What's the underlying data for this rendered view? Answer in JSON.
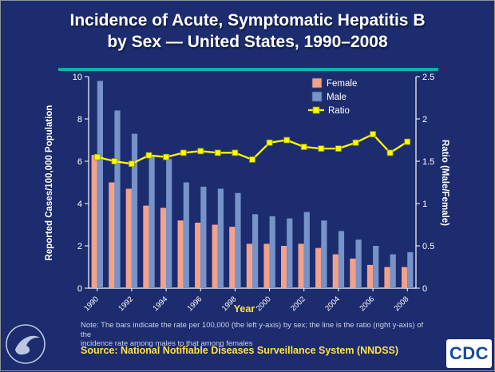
{
  "title": {
    "line1": "Incidence of Acute, Symptomatic Hepatitis B",
    "line2": "by Sex — United States, 1990–2008"
  },
  "colors": {
    "background": "#1d2c6f",
    "divider_teal": "#0ab5a3",
    "female_bar": "#f2a28a",
    "male_bar": "#7693ca",
    "ratio_line": "#fdfd00",
    "axis_text": "#ffffff",
    "accent_yellow": "#fde14a",
    "note_text": "#c9d1e8",
    "cdc_blue": "#164a9c"
  },
  "chart_data": {
    "type": "bar",
    "subtype": "grouped bars with overlay line on secondary axis",
    "categories": [
      "1990",
      "1991",
      "1992",
      "1993",
      "1994",
      "1995",
      "1996",
      "1997",
      "1998",
      "1999",
      "2000",
      "2001",
      "2002",
      "2003",
      "2004",
      "2005",
      "2006",
      "2007",
      "2008"
    ],
    "series": [
      {
        "name": "Female",
        "type": "bar",
        "axis": "left",
        "color": "#f2a28a",
        "values": [
          6.3,
          5.0,
          4.7,
          3.9,
          3.8,
          3.2,
          3.1,
          3.0,
          2.9,
          2.1,
          2.1,
          2.0,
          2.1,
          1.9,
          1.6,
          1.4,
          1.1,
          1.0,
          1.0
        ]
      },
      {
        "name": "Male",
        "type": "bar",
        "axis": "left",
        "color": "#7693ca",
        "values": [
          9.8,
          8.4,
          7.3,
          6.3,
          6.1,
          5.0,
          4.8,
          4.7,
          4.5,
          3.5,
          3.4,
          3.3,
          3.6,
          3.2,
          2.7,
          2.3,
          2.0,
          1.6,
          1.7
        ]
      },
      {
        "name": "Ratio",
        "type": "line",
        "axis": "right",
        "color": "#fdfd00",
        "values": [
          1.55,
          1.5,
          1.47,
          1.57,
          1.55,
          1.6,
          1.62,
          1.6,
          1.6,
          1.52,
          1.72,
          1.75,
          1.67,
          1.65,
          1.65,
          1.72,
          1.82,
          1.6,
          1.73
        ]
      }
    ],
    "left_axis": {
      "title": "Reported Cases/100,000 Population",
      "min": 0,
      "max": 10,
      "ticks": [
        0,
        2,
        4,
        6,
        8,
        10
      ]
    },
    "right_axis": {
      "title": "Ratio (Male/Female)",
      "min": 0,
      "max": 2.5,
      "ticks": [
        0,
        0.5,
        1,
        1.5,
        2,
        2.5
      ]
    },
    "x_axis": {
      "title": "Year",
      "label_every": 2
    },
    "legend_position": "top-right-inside",
    "grid": false
  },
  "note": {
    "line1": "Note:  The bars indicate the rate per 100,000 (the left y-axis) by sex; the line is the ratio (right y-axis) of the",
    "line2": "incidence rate among males to that among females"
  },
  "source": "Source: National Notifiable Diseases Surveillance System (NNDSS)",
  "logos": {
    "cdc": "CDC"
  }
}
